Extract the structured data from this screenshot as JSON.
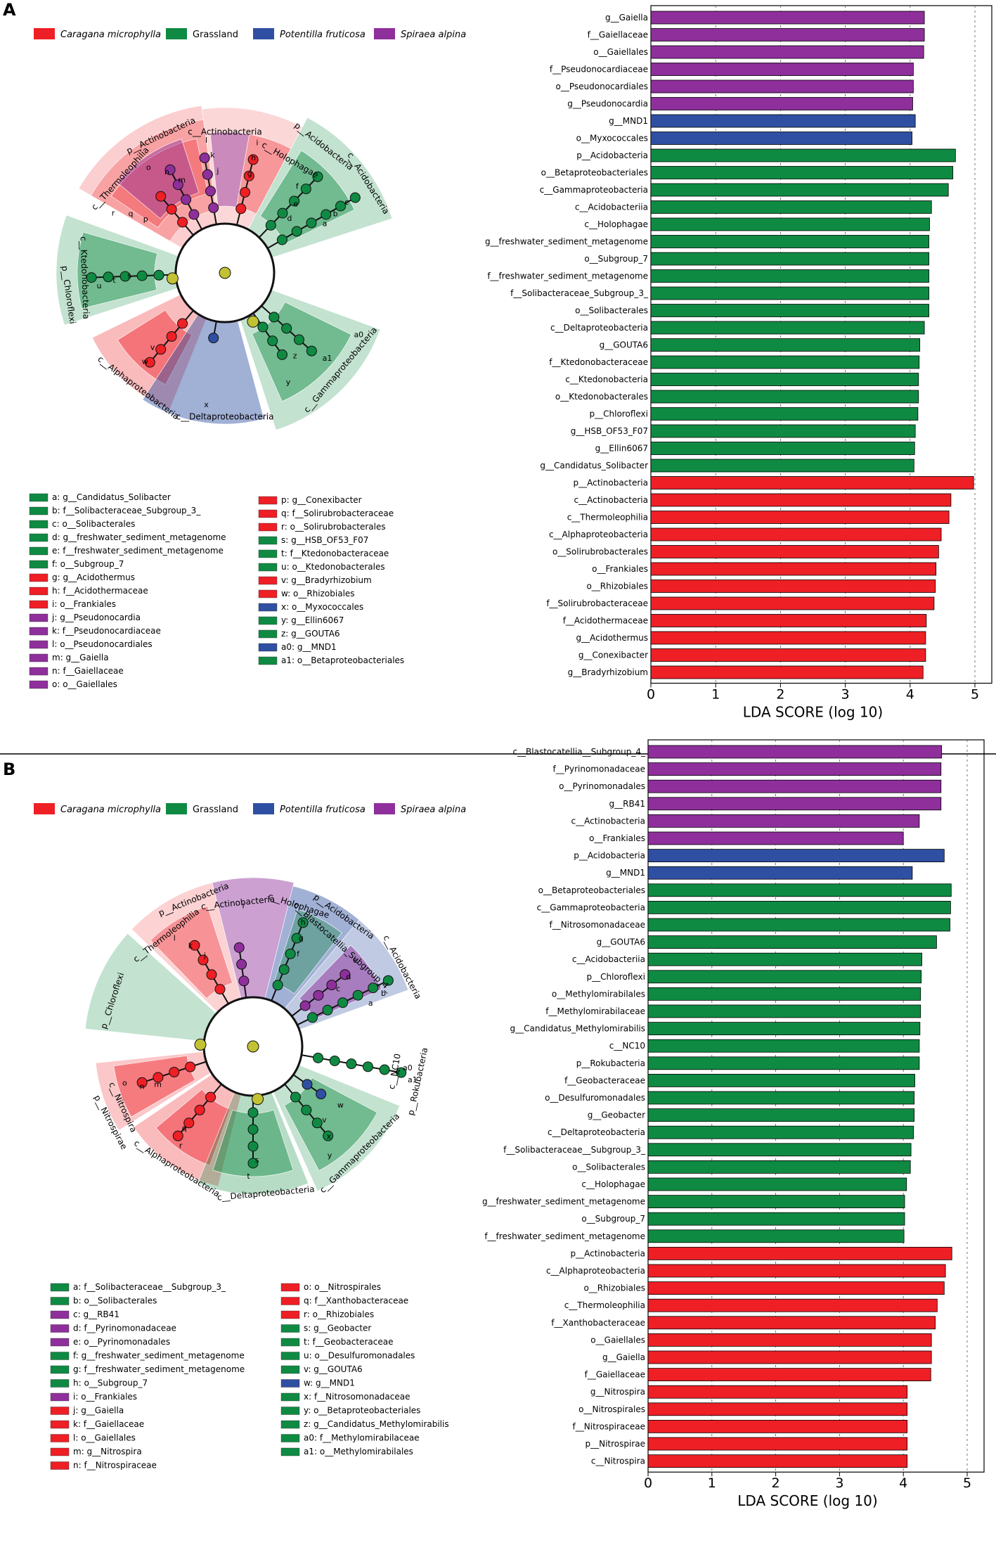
{
  "colors": {
    "caragana": "#ee1f25",
    "grassland": "#0f8a43",
    "potentilla": "#2f4fa2",
    "spiraea": "#8e2f9b",
    "node_yellow": "#c2c234"
  },
  "panels": [
    {
      "label": "A",
      "legend_groups": [
        {
          "name": "Caragana microphylla",
          "italic": true,
          "color_key": "caragana"
        },
        {
          "name": "Grassland",
          "italic": false,
          "color_key": "grassland"
        },
        {
          "name": "Potentilla fruticosa",
          "italic": true,
          "color_key": "potentilla"
        },
        {
          "name": "Spiraea alpina",
          "italic": true,
          "color_key": "spiraea"
        }
      ],
      "clado_labels": [
        {
          "text": "p__Actinobacteria",
          "a": -25,
          "r": 215
        },
        {
          "text": "c__Actinobacteria",
          "a": 0,
          "r": 200
        },
        {
          "text": "p__Acidobacteria",
          "a": 38,
          "r": 228
        },
        {
          "text": "c__Holophagae",
          "a": 30,
          "r": 185
        },
        {
          "text": "c__Acidobacteria",
          "a": 58,
          "r": 240
        },
        {
          "text": "c__Thermoleophilia",
          "a": -48,
          "r": 200
        },
        {
          "text": "p__Chloroflexi",
          "a": -98,
          "r": 225
        },
        {
          "text": "c__Ktedonobacteria",
          "a": -92,
          "r": 200
        },
        {
          "text": "c__Alphaproteobacteria",
          "a": -143,
          "r": 205
        },
        {
          "text": "c__Deltaproteobacteria",
          "a": 180,
          "r": 205
        },
        {
          "text": "c__Gammaproteobacteria",
          "a": 130,
          "r": 215
        }
      ],
      "key_left": [
        {
          "t": "a: g__Candidatus_Solibacter",
          "c": "grassland"
        },
        {
          "t": "b: f__Solibacteraceae_Subgroup_3_",
          "c": "grassland"
        },
        {
          "t": "c: o__Solibacterales",
          "c": "grassland"
        },
        {
          "t": "d: g__freshwater_sediment_metagenome",
          "c": "grassland"
        },
        {
          "t": "e: f__freshwater_sediment_metagenome",
          "c": "grassland"
        },
        {
          "t": "f: o__Subgroup_7",
          "c": "grassland"
        },
        {
          "t": "g: g__Acidothermus",
          "c": "caragana"
        },
        {
          "t": "h: f__Acidothermaceae",
          "c": "caragana"
        },
        {
          "t": "i: o__Frankiales",
          "c": "caragana"
        },
        {
          "t": "j: g__Pseudonocardia",
          "c": "spiraea"
        },
        {
          "t": "k: f__Pseudonocardiaceae",
          "c": "spiraea"
        },
        {
          "t": "l: o__Pseudonocardiales",
          "c": "spiraea"
        },
        {
          "t": "m: g__Gaiella",
          "c": "spiraea"
        },
        {
          "t": "n: f__Gaiellaceae",
          "c": "spiraea"
        },
        {
          "t": "o: o__Gaiellales",
          "c": "spiraea"
        }
      ],
      "key_right": [
        {
          "t": "p: g__Conexibacter",
          "c": "caragana"
        },
        {
          "t": "q: f__Solirubrobacteraceae",
          "c": "caragana"
        },
        {
          "t": "r: o__Solirubrobacterales",
          "c": "caragana"
        },
        {
          "t": "s: g__HSB_OF53_F07",
          "c": "grassland"
        },
        {
          "t": "t: f__Ktedonobacteraceae",
          "c": "grassland"
        },
        {
          "t": "u: o__Ktedonobacterales",
          "c": "grassland"
        },
        {
          "t": "v: g__Bradyrhizobium",
          "c": "caragana"
        },
        {
          "t": "w: o__Rhizobiales",
          "c": "caragana"
        },
        {
          "t": "x: o__Myxococcales",
          "c": "potentilla"
        },
        {
          "t": "y: g__Ellin6067",
          "c": "grassland"
        },
        {
          "t": "z: g__GOUTA6",
          "c": "grassland"
        },
        {
          "t": "a0: g__MND1",
          "c": "potentilla"
        },
        {
          "t": "a1: o__Betaproteobacteriales",
          "c": "grassland"
        }
      ]
    },
    {
      "label": "B",
      "legend_groups": [
        {
          "name": "Caragana microphylla",
          "italic": true,
          "color_key": "caragana"
        },
        {
          "name": "Grassland",
          "italic": false,
          "color_key": "grassland"
        },
        {
          "name": "Potentilla fruticosa",
          "italic": true,
          "color_key": "potentilla"
        },
        {
          "name": "Spiraea alpina",
          "italic": true,
          "color_key": "spiraea"
        }
      ],
      "clado_labels": [
        {
          "text": "p__Actinobacteria",
          "a": -22,
          "r": 225
        },
        {
          "text": "c__Actinobacteria",
          "a": -6,
          "r": 205
        },
        {
          "text": "c__Thermoleophilia",
          "a": -38,
          "r": 200
        },
        {
          "text": "c__Holophagae",
          "a": 18,
          "r": 210
        },
        {
          "text": "p__Acidobacteria",
          "a": 35,
          "r": 225
        },
        {
          "text": "c__Blastocatellia_Subgroup_4_",
          "a": 42,
          "r": 190
        },
        {
          "text": "c__Acidobacteria",
          "a": 62,
          "r": 240
        },
        {
          "text": "p__Chloroflexi",
          "a": -72,
          "r": 210
        },
        {
          "text": "p__Nitrospirae",
          "a": -118,
          "r": 230
        },
        {
          "text": "c__Nitrospira",
          "a": -115,
          "r": 205
        },
        {
          "text": "c__Alphaproteobacteria",
          "a": -148,
          "r": 205
        },
        {
          "text": "c__Deltaproteobacteria",
          "a": 175,
          "r": 210
        },
        {
          "text": "c__Gammaproteobacteria",
          "a": 135,
          "r": 215
        },
        {
          "text": "p__Rokubacteria",
          "a": 102,
          "r": 240
        },
        {
          "text": "c__NC10",
          "a": 100,
          "r": 205
        }
      ],
      "key_left": [
        {
          "t": "a: f__Solibacteraceae__Subgroup_3_",
          "c": "grassland"
        },
        {
          "t": "b: o__Solibacterales",
          "c": "grassland"
        },
        {
          "t": "c: g__RB41",
          "c": "spiraea"
        },
        {
          "t": "d: f__Pyrinomonadaceae",
          "c": "spiraea"
        },
        {
          "t": "e: o__Pyrinomonadales",
          "c": "spiraea"
        },
        {
          "t": "f: g__freshwater_sediment_metagenome",
          "c": "grassland"
        },
        {
          "t": "g: f__freshwater_sediment_metagenome",
          "c": "grassland"
        },
        {
          "t": "h: o__Subgroup_7",
          "c": "grassland"
        },
        {
          "t": "i: o__Frankiales",
          "c": "spiraea"
        },
        {
          "t": "j: g__Gaiella",
          "c": "caragana"
        },
        {
          "t": "k: f__Gaiellaceae",
          "c": "caragana"
        },
        {
          "t": "l: o__Gaiellales",
          "c": "caragana"
        },
        {
          "t": "m: g__Nitrospira",
          "c": "caragana"
        },
        {
          "t": "n: f__Nitrospiraceae",
          "c": "caragana"
        }
      ],
      "key_right": [
        {
          "t": "o: o__Nitrospirales",
          "c": "caragana"
        },
        {
          "t": "q: f__Xanthobacteraceae",
          "c": "caragana"
        },
        {
          "t": "r: o__Rhizobiales",
          "c": "caragana"
        },
        {
          "t": "s: g__Geobacter",
          "c": "grassland"
        },
        {
          "t": "t: f__Geobacteraceae",
          "c": "grassland"
        },
        {
          "t": "u: o__Desulfuromonadales",
          "c": "grassland"
        },
        {
          "t": "v: g__GOUTA6",
          "c": "grassland"
        },
        {
          "t": "w: g__MND1",
          "c": "potentilla"
        },
        {
          "t": "x: f__Nitrosomonadaceae",
          "c": "grassland"
        },
        {
          "t": "y: o__Betaproteobacteriales",
          "c": "grassland"
        },
        {
          "t": "z: g__Candidatus_Methylomirabilis",
          "c": "grassland"
        },
        {
          "t": "a0: f__Methylomirabilaceae",
          "c": "grassland"
        },
        {
          "t": "a1: o__Methylomirabilales",
          "c": "grassland"
        }
      ]
    }
  ],
  "chart_data": [
    {
      "type": "bar",
      "title": "A",
      "xlabel": "LDA SCORE (log 10)",
      "xlim": [
        0,
        5
      ],
      "xticks": [
        "0",
        "1",
        "2",
        "3",
        "4",
        "5"
      ],
      "categories": [
        "g__Gaiella",
        "f__Gaiellaceae",
        "o__Gaiellales",
        "f__Pseudonocardiaceae",
        "o__Pseudonocardiales",
        "g__Pseudonocardia",
        "g__MND1",
        "o__Myxococcales",
        "p__Acidobacteria",
        "o__Betaproteobacteriales",
        "c__Gammaproteobacteria",
        "c__Acidobacteriia",
        "c__Holophagae",
        "g__freshwater_sediment_metagenome",
        "o__Subgroup_7",
        "f__freshwater_sediment_metagenome",
        "f__Solibacteraceae_Subgroup_3_",
        "o__Solibacterales",
        "c__Deltaproteobacteria",
        "g__GOUTA6",
        "f__Ktedonobacteraceae",
        "c__Ktedonobacteria",
        "o__Ktedonobacterales",
        "p__Chloroflexi",
        "g__HSB_OF53_F07",
        "g__Ellin6067",
        "g__Candidatus_Solibacter",
        "p__Actinobacteria",
        "c__Actinobacteria",
        "c__Thermoleophilia",
        "c__Alphaproteobacteria",
        "o__Solirubrobacterales",
        "o__Frankiales",
        "o__Rhizobiales",
        "f__Solirubrobacteraceae",
        "f__Acidothermaceae",
        "g__Acidothermus",
        "g__Conexibacter",
        "g__Bradyrhizobium"
      ],
      "values": [
        4.22,
        4.22,
        4.21,
        4.05,
        4.05,
        4.04,
        4.08,
        4.03,
        4.7,
        4.66,
        4.59,
        4.33,
        4.3,
        4.29,
        4.29,
        4.29,
        4.29,
        4.29,
        4.22,
        4.15,
        4.14,
        4.13,
        4.13,
        4.12,
        4.08,
        4.07,
        4.06,
        4.98,
        4.63,
        4.6,
        4.48,
        4.44,
        4.4,
        4.39,
        4.37,
        4.25,
        4.24,
        4.24,
        4.2
      ],
      "groups": [
        "spiraea",
        "spiraea",
        "spiraea",
        "spiraea",
        "spiraea",
        "spiraea",
        "potentilla",
        "potentilla",
        "grassland",
        "grassland",
        "grassland",
        "grassland",
        "grassland",
        "grassland",
        "grassland",
        "grassland",
        "grassland",
        "grassland",
        "grassland",
        "grassland",
        "grassland",
        "grassland",
        "grassland",
        "grassland",
        "grassland",
        "grassland",
        "grassland",
        "caragana",
        "caragana",
        "caragana",
        "caragana",
        "caragana",
        "caragana",
        "caragana",
        "caragana",
        "caragana",
        "caragana",
        "caragana",
        "caragana"
      ]
    },
    {
      "type": "bar",
      "title": "B",
      "xlabel": "LDA SCORE (log 10)",
      "xlim": [
        0,
        5
      ],
      "xticks": [
        "0",
        "1",
        "2",
        "3",
        "4",
        "5"
      ],
      "categories": [
        "c__Blastocatellia__Subgroup_4_",
        "f__Pyrinomonadaceae",
        "o__Pyrinomonadales",
        "g__RB41",
        "c__Actinobacteria",
        "o__Frankiales",
        "p__Acidobacteria",
        "g__MND1",
        "o__Betaproteobacteriales",
        "c__Gammaproteobacteria",
        "f__Nitrosomonadaceae",
        "g__GOUTA6",
        "c__Acidobacteriia",
        "p__Chloroflexi",
        "o__Methylomirabilales",
        "f__Methylomirabilaceae",
        "g__Candidatus_Methylomirabilis",
        "c__NC10",
        "p__Rokubacteria",
        "f__Geobacteraceae",
        "o__Desulfuromonadales",
        "g__Geobacter",
        "c__Deltaproteobacteria",
        "f__Solibacteraceae__Subgroup_3_",
        "o__Solibacterales",
        "c__Holophagae",
        "g__freshwater_sediment_metagenome",
        "o__Subgroup_7",
        "f__freshwater_sediment_metagenome",
        "p__Actinobacteria",
        "c__Alphaproteobacteria",
        "o__Rhizobiales",
        "c__Thermoleophilia",
        "f__Xanthobacteraceae",
        "o__Gaiellales",
        "g__Gaiella",
        "f__Gaiellaceae",
        "g__Nitrospira",
        "o__Nitrospirales",
        "f__Nitrospiraceae",
        "p__Nitrospirae",
        "c__Nitrospira"
      ],
      "values": [
        4.6,
        4.59,
        4.59,
        4.59,
        4.25,
        4.0,
        4.64,
        4.14,
        4.75,
        4.74,
        4.73,
        4.52,
        4.29,
        4.28,
        4.27,
        4.27,
        4.26,
        4.25,
        4.25,
        4.18,
        4.17,
        4.17,
        4.16,
        4.12,
        4.11,
        4.05,
        4.02,
        4.02,
        4.01,
        4.76,
        4.66,
        4.64,
        4.53,
        4.5,
        4.44,
        4.44,
        4.43,
        4.06,
        4.06,
        4.06,
        4.06,
        4.06
      ],
      "groups": [
        "spiraea",
        "spiraea",
        "spiraea",
        "spiraea",
        "spiraea",
        "spiraea",
        "potentilla",
        "potentilla",
        "grassland",
        "grassland",
        "grassland",
        "grassland",
        "grassland",
        "grassland",
        "grassland",
        "grassland",
        "grassland",
        "grassland",
        "grassland",
        "grassland",
        "grassland",
        "grassland",
        "grassland",
        "grassland",
        "grassland",
        "grassland",
        "grassland",
        "grassland",
        "grassland",
        "caragana",
        "caragana",
        "caragana",
        "caragana",
        "caragana",
        "caragana",
        "caragana",
        "caragana",
        "caragana",
        "caragana",
        "caragana",
        "caragana",
        "caragana"
      ]
    }
  ]
}
